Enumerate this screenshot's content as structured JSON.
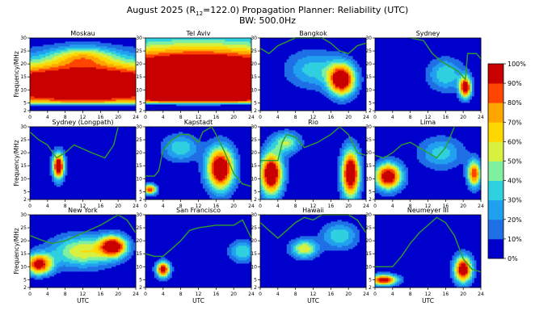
{
  "header": {
    "title_prefix": "August 2025 (R",
    "title_sub": "12",
    "title_suffix": "=122.0) Propagation Planner: Reliability (UTC)",
    "subtitle": "BW: 500.0Hz"
  },
  "colorbar": {
    "ticks": [
      "0%",
      "10%",
      "20%",
      "30%",
      "40%",
      "50%",
      "60%",
      "70%",
      "80%",
      "90%",
      "100%"
    ],
    "colors": [
      "#0000cd",
      "#1f6fe6",
      "#22a0f0",
      "#2fd0e0",
      "#7ef0a0",
      "#d8f040",
      "#ffd700",
      "#ffa500",
      "#ff4500",
      "#c80000"
    ]
  },
  "chart_data": [
    {
      "type": "heatmap",
      "title": "Moskau",
      "ylabel": "Frequency/MHz",
      "xlabel": "",
      "xlim": [
        0,
        24
      ],
      "ylim": [
        2,
        30
      ],
      "xticks": [
        0,
        4,
        8,
        12,
        16,
        20,
        24
      ],
      "yticks": [
        2,
        5,
        10,
        15,
        20,
        25,
        30
      ],
      "blobs": [
        {
          "x": 12,
          "y": 12,
          "sx": 30,
          "sy": 9,
          "a": 1.35
        },
        {
          "x": 12,
          "y": 23,
          "sx": 7,
          "sy": 4,
          "a": 0.45
        }
      ],
      "cutoff": {
        "below": 4.5,
        "spread": 2.5
      },
      "muf": []
    },
    {
      "type": "heatmap",
      "title": "Tel Aviv",
      "ylabel": "",
      "xlabel": "",
      "xlim": [
        0,
        24
      ],
      "ylim": [
        2,
        30
      ],
      "xticks": [
        0,
        4,
        8,
        12,
        16,
        20,
        24
      ],
      "yticks": [
        2,
        5,
        10,
        15,
        20,
        25,
        30
      ],
      "blobs": [
        {
          "x": 12,
          "y": 14,
          "sx": 30,
          "sy": 13,
          "a": 1.6
        }
      ],
      "cutoff": {
        "below": 5,
        "spread": 2.5
      },
      "muf": []
    },
    {
      "type": "heatmap",
      "title": "Bangkok",
      "ylabel": "",
      "xlabel": "",
      "xlim": [
        0,
        24
      ],
      "ylim": [
        2,
        30
      ],
      "xticks": [
        0,
        4,
        8,
        12,
        16,
        20,
        24
      ],
      "yticks": [
        2,
        5,
        10,
        15,
        20,
        25,
        30
      ],
      "blobs": [
        {
          "x": 18.5,
          "y": 14,
          "sx": 3,
          "sy": 6,
          "a": 1.15
        },
        {
          "x": 12,
          "y": 18,
          "sx": 6,
          "sy": 7,
          "a": 0.35
        }
      ],
      "cutoff": null,
      "muf": [
        [
          0,
          26
        ],
        [
          2,
          24
        ],
        [
          4,
          27
        ],
        [
          8,
          30
        ],
        [
          14,
          30
        ],
        [
          16,
          28
        ],
        [
          18,
          25
        ],
        [
          20,
          24
        ],
        [
          22,
          27
        ],
        [
          24,
          28
        ]
      ]
    },
    {
      "type": "heatmap",
      "title": "Sydney",
      "ylabel": "",
      "xlabel": "",
      "xlim": [
        0,
        24
      ],
      "ylim": [
        2,
        30
      ],
      "xticks": [
        0,
        4,
        8,
        12,
        16,
        20,
        24
      ],
      "yticks": [
        2,
        5,
        10,
        15,
        20,
        25,
        30
      ],
      "blobs": [
        {
          "x": 20.5,
          "y": 11,
          "sx": 1.3,
          "sy": 4,
          "a": 1.1
        },
        {
          "x": 16,
          "y": 16,
          "sx": 4,
          "sy": 6,
          "a": 0.4
        }
      ],
      "cutoff": null,
      "muf": [
        [
          8,
          30
        ],
        [
          11,
          29
        ],
        [
          13,
          24
        ],
        [
          15,
          21
        ],
        [
          17,
          19
        ],
        [
          19,
          17
        ],
        [
          20.5,
          14
        ],
        [
          21,
          24
        ],
        [
          23,
          24
        ],
        [
          24,
          22
        ]
      ]
    },
    {
      "type": "heatmap",
      "title": "Sydney (Longpath)",
      "ylabel": "Frequency/MHz",
      "xlabel": "",
      "xlim": [
        0,
        24
      ],
      "ylim": [
        2,
        30
      ],
      "xticks": [
        0,
        4,
        8,
        12,
        16,
        20,
        24
      ],
      "yticks": [
        2,
        5,
        10,
        15,
        20,
        25,
        30
      ],
      "blobs": [
        {
          "x": 6.5,
          "y": 15,
          "sx": 1.3,
          "sy": 5,
          "a": 1.15
        }
      ],
      "cutoff": null,
      "muf": [
        [
          0,
          28
        ],
        [
          2,
          25
        ],
        [
          4,
          23
        ],
        [
          6,
          18
        ],
        [
          8,
          20
        ],
        [
          10,
          23
        ],
        [
          14,
          20
        ],
        [
          17,
          18
        ],
        [
          19,
          23
        ],
        [
          20,
          30
        ]
      ]
    },
    {
      "type": "heatmap",
      "title": "Kapstadt",
      "ylabel": "",
      "xlabel": "",
      "xlim": [
        0,
        24
      ],
      "ylim": [
        2,
        30
      ],
      "xticks": [
        0,
        4,
        8,
        12,
        16,
        20,
        24
      ],
      "yticks": [
        2,
        5,
        10,
        15,
        20,
        25,
        30
      ],
      "blobs": [
        {
          "x": 17,
          "y": 14,
          "sx": 3,
          "sy": 8,
          "a": 1.2
        },
        {
          "x": 1,
          "y": 6,
          "sx": 1.5,
          "sy": 2,
          "a": 0.9
        },
        {
          "x": 8,
          "y": 22,
          "sx": 4,
          "sy": 5,
          "a": 0.4
        }
      ],
      "cutoff": null,
      "muf": [
        [
          0,
          11
        ],
        [
          2,
          11
        ],
        [
          3,
          13
        ],
        [
          4,
          21
        ],
        [
          6,
          25
        ],
        [
          8,
          27
        ],
        [
          10,
          27
        ],
        [
          12,
          24
        ],
        [
          13,
          28
        ],
        [
          15,
          30
        ],
        [
          16,
          27
        ],
        [
          18,
          20
        ],
        [
          20,
          12
        ],
        [
          22,
          8
        ],
        [
          24,
          7
        ]
      ]
    },
    {
      "type": "heatmap",
      "title": "Rio",
      "ylabel": "",
      "xlabel": "",
      "xlim": [
        0,
        24
      ],
      "ylim": [
        2,
        30
      ],
      "xticks": [
        0,
        4,
        8,
        12,
        16,
        20,
        24
      ],
      "yticks": [
        2,
        5,
        10,
        15,
        20,
        25,
        30
      ],
      "blobs": [
        {
          "x": 2.5,
          "y": 12,
          "sx": 2.5,
          "sy": 8,
          "a": 1.2
        },
        {
          "x": 20.5,
          "y": 12,
          "sx": 2,
          "sy": 9,
          "a": 1.2
        },
        {
          "x": 6,
          "y": 24,
          "sx": 3,
          "sy": 4,
          "a": 0.5
        }
      ],
      "cutoff": null,
      "muf": [
        [
          0,
          17
        ],
        [
          4,
          17
        ],
        [
          5,
          24
        ],
        [
          6,
          27
        ],
        [
          8,
          26
        ],
        [
          10,
          22
        ],
        [
          13,
          24
        ],
        [
          16,
          27
        ],
        [
          18,
          30
        ],
        [
          20,
          27
        ],
        [
          22,
          20
        ],
        [
          24,
          19
        ]
      ]
    },
    {
      "type": "heatmap",
      "title": "Lima",
      "ylabel": "",
      "xlabel": "",
      "xlim": [
        0,
        24
      ],
      "ylim": [
        2,
        30
      ],
      "xticks": [
        0,
        4,
        8,
        12,
        16,
        20,
        24
      ],
      "yticks": [
        2,
        5,
        10,
        15,
        20,
        25,
        30
      ],
      "blobs": [
        {
          "x": 3,
          "y": 11,
          "sx": 3,
          "sy": 5,
          "a": 1.1
        },
        {
          "x": 22.5,
          "y": 12,
          "sx": 1.5,
          "sy": 5,
          "a": 0.9
        },
        {
          "x": 15,
          "y": 20,
          "sx": 5,
          "sy": 6,
          "a": 0.35
        }
      ],
      "cutoff": null,
      "muf": [
        [
          0,
          19
        ],
        [
          2,
          18
        ],
        [
          4,
          20
        ],
        [
          6,
          23
        ],
        [
          8,
          24
        ],
        [
          10,
          22
        ],
        [
          12,
          20
        ],
        [
          14,
          18
        ],
        [
          16,
          22
        ],
        [
          18,
          30
        ]
      ]
    },
    {
      "type": "heatmap",
      "title": "New York",
      "ylabel": "Frequency/MHz",
      "xlabel": "UTC",
      "xlim": [
        0,
        24
      ],
      "ylim": [
        2,
        30
      ],
      "xticks": [
        0,
        4,
        8,
        12,
        16,
        20,
        24
      ],
      "yticks": [
        2,
        5,
        10,
        15,
        20,
        25,
        30
      ],
      "blobs": [
        {
          "x": 2,
          "y": 11,
          "sx": 3,
          "sy": 4,
          "a": 1.0
        },
        {
          "x": 19,
          "y": 18,
          "sx": 3,
          "sy": 4,
          "a": 1.0
        },
        {
          "x": 12,
          "y": 16,
          "sx": 7,
          "sy": 6,
          "a": 0.6
        }
      ],
      "cutoff": {
        "below": 5,
        "spread": 2.5
      },
      "muf": [
        [
          0,
          22
        ],
        [
          3,
          20
        ],
        [
          5,
          19
        ],
        [
          8,
          20
        ],
        [
          12,
          23
        ],
        [
          16,
          26
        ],
        [
          20,
          30
        ],
        [
          22,
          28
        ],
        [
          24,
          23
        ]
      ]
    },
    {
      "type": "heatmap",
      "title": "San Francisco",
      "ylabel": "",
      "xlabel": "UTC",
      "xlim": [
        0,
        24
      ],
      "ylim": [
        2,
        30
      ],
      "xticks": [
        0,
        4,
        8,
        12,
        16,
        20,
        24
      ],
      "yticks": [
        2,
        5,
        10,
        15,
        20,
        25,
        30
      ],
      "blobs": [
        {
          "x": 4,
          "y": 9,
          "sx": 1.5,
          "sy": 3,
          "a": 1.05
        },
        {
          "x": 22,
          "y": 16,
          "sx": 3,
          "sy": 4,
          "a": 0.4
        }
      ],
      "cutoff": null,
      "muf": [
        [
          0,
          15
        ],
        [
          2,
          14
        ],
        [
          4,
          14
        ],
        [
          6,
          17
        ],
        [
          8,
          20
        ],
        [
          10,
          24
        ],
        [
          12,
          25
        ],
        [
          16,
          26
        ],
        [
          20,
          26
        ],
        [
          22,
          28
        ],
        [
          24,
          21
        ]
      ]
    },
    {
      "type": "heatmap",
      "title": "Hawaii",
      "ylabel": "",
      "xlabel": "UTC",
      "xlim": [
        0,
        24
      ],
      "ylim": [
        2,
        30
      ],
      "xticks": [
        0,
        4,
        8,
        12,
        16,
        20,
        24
      ],
      "yticks": [
        2,
        5,
        10,
        15,
        20,
        25,
        30
      ],
      "blobs": [
        {
          "x": 10,
          "y": 17,
          "sx": 3,
          "sy": 3.5,
          "a": 0.6
        },
        {
          "x": 18,
          "y": 22,
          "sx": 4,
          "sy": 5,
          "a": 0.4
        }
      ],
      "cutoff": null,
      "muf": [
        [
          0,
          27
        ],
        [
          2,
          24
        ],
        [
          4,
          21
        ],
        [
          6,
          24
        ],
        [
          8,
          27
        ],
        [
          10,
          29
        ],
        [
          12,
          28
        ],
        [
          14,
          30
        ],
        [
          20,
          30
        ],
        [
          22,
          28
        ],
        [
          24,
          23
        ]
      ]
    },
    {
      "type": "heatmap",
      "title": "Neumeyer III",
      "ylabel": "",
      "xlabel": "UTC",
      "xlim": [
        0,
        24
      ],
      "ylim": [
        2,
        30
      ],
      "xticks": [
        0,
        4,
        8,
        12,
        16,
        20,
        24
      ],
      "yticks": [
        2,
        5,
        10,
        15,
        20,
        25,
        30
      ],
      "blobs": [
        {
          "x": 20,
          "y": 9,
          "sx": 2,
          "sy": 5,
          "a": 1.1
        },
        {
          "x": 2,
          "y": 5,
          "sx": 3,
          "sy": 2,
          "a": 1.05
        }
      ],
      "cutoff": null,
      "muf": [
        [
          0,
          10
        ],
        [
          2,
          10
        ],
        [
          4,
          10
        ],
        [
          6,
          14
        ],
        [
          8,
          19
        ],
        [
          10,
          23
        ],
        [
          12,
          26
        ],
        [
          14,
          29
        ],
        [
          16,
          27
        ],
        [
          18,
          22
        ],
        [
          20,
          13
        ],
        [
          22,
          9
        ],
        [
          24,
          8
        ]
      ]
    }
  ]
}
